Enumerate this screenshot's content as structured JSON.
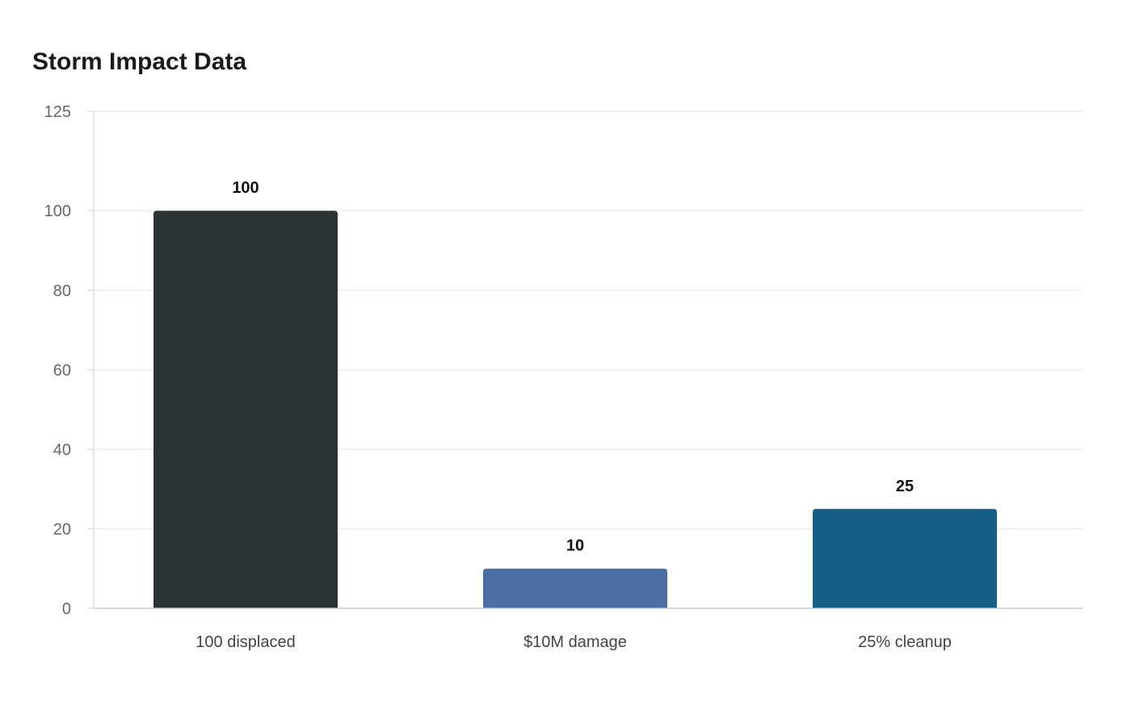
{
  "chart_data": {
    "type": "bar",
    "title": "Storm Impact Data",
    "xlabel": "",
    "ylabel": "",
    "categories": [
      "100 displaced",
      "$10M damage",
      "25% cleanup"
    ],
    "values": [
      100,
      10,
      25
    ],
    "colors": [
      "#2d3436",
      "#4a6ea3",
      "#165f87"
    ],
    "ylim": [
      0,
      125
    ],
    "yticks": [
      0,
      20,
      40,
      60,
      80,
      100,
      125
    ],
    "grid": true,
    "legend": "none"
  }
}
